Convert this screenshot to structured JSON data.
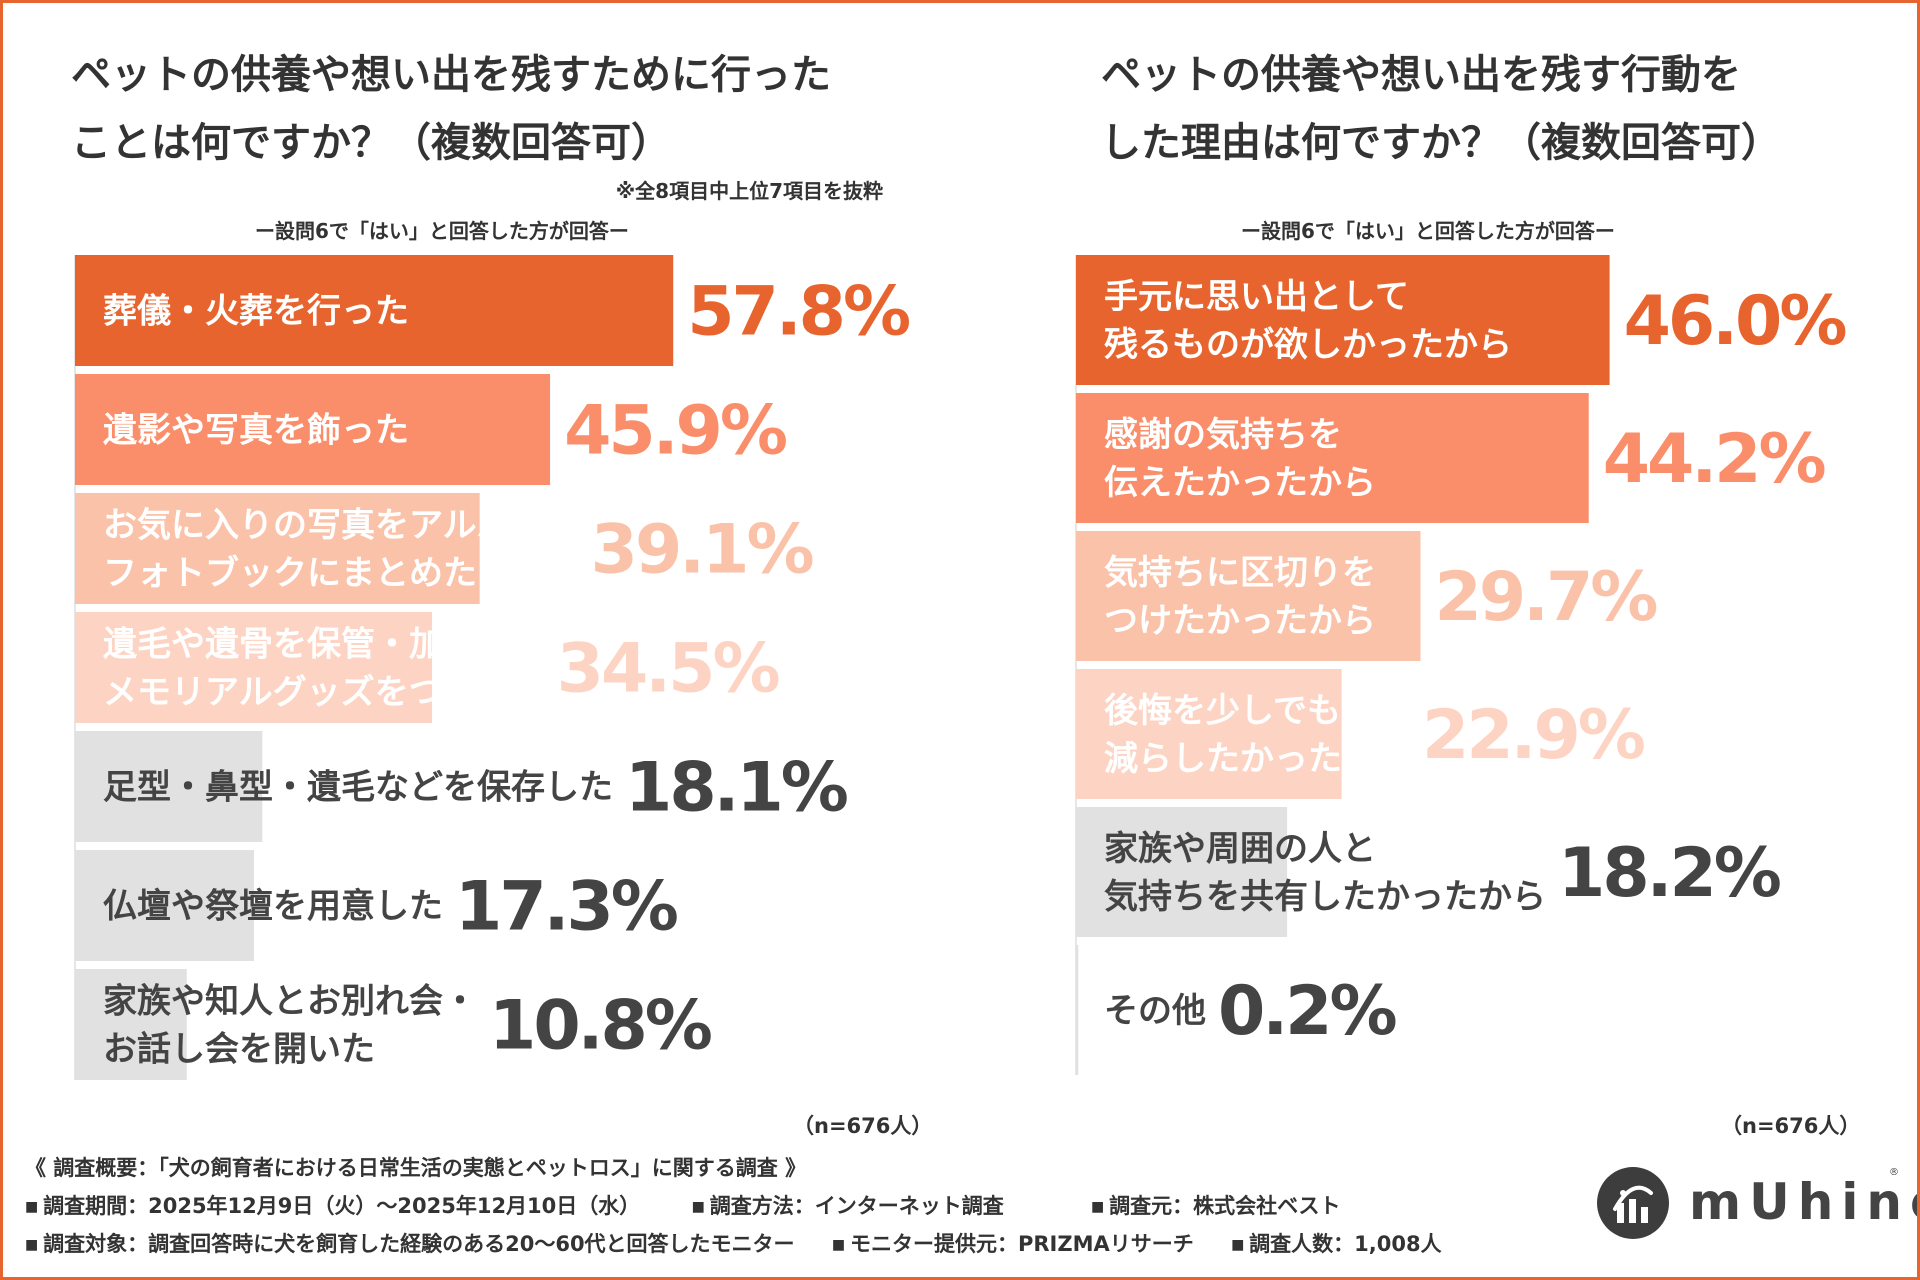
{
  "colors": {
    "frame": "#e8642e",
    "bar_rank1": "#e8642e",
    "bar_rank2": "#fb8e6a",
    "bar_rank3": "#fbc2aa",
    "bar_rank4": "#fdd4c3",
    "bar_gray": "#e1e1e1",
    "label_on_dark": "#ffffff",
    "label_on_gray": "#444444",
    "text": "#333333"
  },
  "left": {
    "title_line1": "ペットの供養や想い出を残すために行った",
    "title_line2": "ことは何ですか？（複数回答可）",
    "excerpt_note": "※全8項目中上位7項目を抜粋",
    "subtitle": "ー設問6で「はい」と回答した方が回答ー",
    "n_label": "（n=676人）"
  },
  "right": {
    "title_line1": "ペットの供養や想い出を残す行動を",
    "title_line2": "した理由は何ですか？（複数回答可）",
    "subtitle": "ー設問6で「はい」と回答した方が回答ー",
    "n_label": "（n=676人）"
  },
  "chart_data": [
    {
      "type": "bar",
      "orientation": "horizontal",
      "title": "ペットの供養や想い出を残すために行ったことは何ですか？（複数回答可）",
      "categories": [
        [
          "葬儀・火葬を行った"
        ],
        [
          "遺影や写真を飾った"
        ],
        [
          "お気に入りの写真をアルバムや",
          "フォトブックにまとめた"
        ],
        [
          "遺毛や遺骨を保管・加工して",
          "メモリアルグッズをつくった"
        ],
        [
          "足型・鼻型・遺毛などを保存した"
        ],
        [
          "仏壇や祭壇を用意した"
        ],
        [
          "家族や知人とお別れ会・",
          "お話し会を開いた"
        ]
      ],
      "values": [
        57.8,
        45.9,
        39.1,
        34.5,
        18.1,
        17.3,
        10.8
      ],
      "value_labels": [
        "57.8%",
        "45.9%",
        "39.1%",
        "34.5%",
        "18.1%",
        "17.3%",
        "10.8%"
      ],
      "xlim": [
        0,
        100
      ],
      "grid": false,
      "legend": "none"
    },
    {
      "type": "bar",
      "orientation": "horizontal",
      "title": "ペットの供養や想い出を残す行動をした理由は何ですか？（複数回答可）",
      "categories": [
        [
          "手元に思い出として",
          "残るものが欲しかったから"
        ],
        [
          "感謝の気持ちを",
          "伝えたかったから"
        ],
        [
          "気持ちに区切りを",
          "つけたかったから"
        ],
        [
          "後悔を少しでも",
          "減らしたかったから"
        ],
        [
          "家族や周囲の人と",
          "気持ちを共有したかったから"
        ],
        [
          "その他"
        ]
      ],
      "values": [
        46.0,
        44.2,
        29.7,
        22.9,
        18.2,
        0.2
      ],
      "value_labels": [
        "46.0%",
        "44.2%",
        "29.7%",
        "22.9%",
        "18.2%",
        "0.2%"
      ],
      "xlim": [
        0,
        100
      ],
      "grid": false,
      "legend": "none"
    }
  ],
  "footer": {
    "survey_title": "《 調査概要：「犬の飼育者における日常生活の実態とペットロス」に関する調査 》",
    "period": "調査期間：2025年12月9日（火）～2025年12月10日（水）",
    "method": "調査方法：インターネット調査",
    "organizer": "調査元：株式会社ベスト",
    "target": "調査対象：調査回答時に犬を飼育した経験のある20～60代と回答したモニター",
    "provider": "モニター提供元：PRIZMAリサーチ",
    "sample_size": "調査人数：1,008人"
  },
  "logo": {
    "text": "mUhino",
    "reg": "®"
  }
}
